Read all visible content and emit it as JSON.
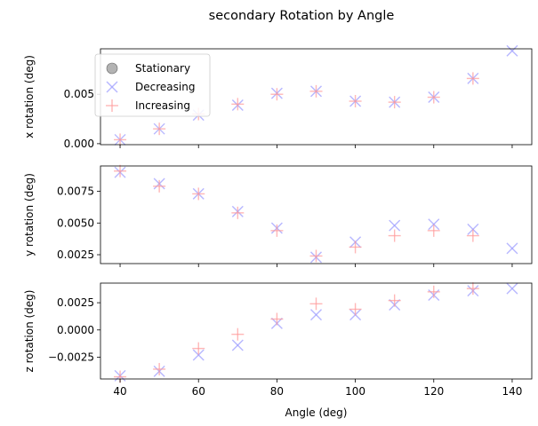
{
  "figure": {
    "title": "secondary Rotation by Angle"
  },
  "legend": {
    "placement": "top-left",
    "entries": [
      {
        "label": "Stationary",
        "marker": "circle",
        "color": "#808080"
      },
      {
        "label": "Decreasing",
        "marker": "x",
        "color": "#9999ff"
      },
      {
        "label": "Increasing",
        "marker": "plus",
        "color": "#ff9999"
      }
    ]
  },
  "colors": {
    "stationary": "#808080",
    "decreasing": "#9999ff",
    "increasing": "#ff9999"
  },
  "chart_data": [
    {
      "type": "scatter",
      "ylabel": "x rotation (deg)",
      "xlabel": "",
      "xlim": [
        35,
        145
      ],
      "ylim": [
        -0.0001,
        0.0096
      ],
      "yticks": [
        0.0,
        0.005
      ],
      "ytick_labels": [
        "0.000",
        "0.005"
      ],
      "series": [
        {
          "name": "Stationary",
          "x": [],
          "y": []
        },
        {
          "name": "Decreasing",
          "x": [
            40,
            50,
            60,
            70,
            80,
            90,
            100,
            110,
            120,
            130,
            140
          ],
          "y": [
            0.0004,
            0.0015,
            0.0029,
            0.0039,
            0.0051,
            0.0053,
            0.0043,
            0.0042,
            0.0047,
            0.0066,
            0.0094
          ]
        },
        {
          "name": "Increasing",
          "x": [
            40,
            50,
            60,
            70,
            80,
            90,
            100,
            110,
            120,
            130
          ],
          "y": [
            0.0004,
            0.0015,
            0.003,
            0.004,
            0.005,
            0.0053,
            0.0043,
            0.0042,
            0.0047,
            0.0066
          ]
        }
      ]
    },
    {
      "type": "scatter",
      "ylabel": "y rotation (deg)",
      "xlabel": "",
      "xlim": [
        35,
        145
      ],
      "ylim": [
        0.0018,
        0.0095
      ],
      "yticks": [
        0.0025,
        0.005,
        0.0075
      ],
      "ytick_labels": [
        "0.0025",
        "0.0050",
        "0.0075"
      ],
      "series": [
        {
          "name": "Stationary",
          "x": [],
          "y": []
        },
        {
          "name": "Decreasing",
          "x": [
            40,
            50,
            60,
            70,
            80,
            90,
            100,
            110,
            120,
            130,
            140
          ],
          "y": [
            0.009,
            0.0081,
            0.0073,
            0.0059,
            0.0046,
            0.0023,
            0.0035,
            0.0048,
            0.0049,
            0.0045,
            0.003
          ]
        },
        {
          "name": "Increasing",
          "x": [
            40,
            50,
            60,
            70,
            80,
            90,
            100,
            110,
            120,
            130
          ],
          "y": [
            0.0091,
            0.0079,
            0.0073,
            0.0058,
            0.0044,
            0.0024,
            0.0031,
            0.004,
            0.0044,
            0.004
          ]
        }
      ]
    },
    {
      "type": "scatter",
      "ylabel": "z rotation (deg)",
      "xlabel": "Angle (deg)",
      "xlim": [
        35,
        145
      ],
      "ylim": [
        -0.0045,
        0.0043
      ],
      "xticks": [
        40,
        60,
        80,
        100,
        120,
        140
      ],
      "xtick_labels": [
        "40",
        "60",
        "80",
        "100",
        "120",
        "140"
      ],
      "yticks": [
        -0.0025,
        0.0,
        0.0025
      ],
      "ytick_labels": [
        "−0.0025",
        "0.0000",
        "0.0025"
      ],
      "series": [
        {
          "name": "Stationary",
          "x": [],
          "y": []
        },
        {
          "name": "Decreasing",
          "x": [
            40,
            50,
            60,
            70,
            80,
            90,
            100,
            110,
            120,
            130,
            140
          ],
          "y": [
            -0.0042,
            -0.0038,
            -0.0023,
            -0.0014,
            0.0006,
            0.0014,
            0.0014,
            0.0023,
            0.0032,
            0.0036,
            0.0038
          ]
        },
        {
          "name": "Increasing",
          "x": [
            40,
            50,
            60,
            70,
            80,
            90,
            100,
            110,
            120,
            130
          ],
          "y": [
            -0.0043,
            -0.0036,
            -0.0017,
            -0.0004,
            0.001,
            0.0024,
            0.0019,
            0.0027,
            0.0035,
            0.0038
          ]
        }
      ]
    }
  ]
}
